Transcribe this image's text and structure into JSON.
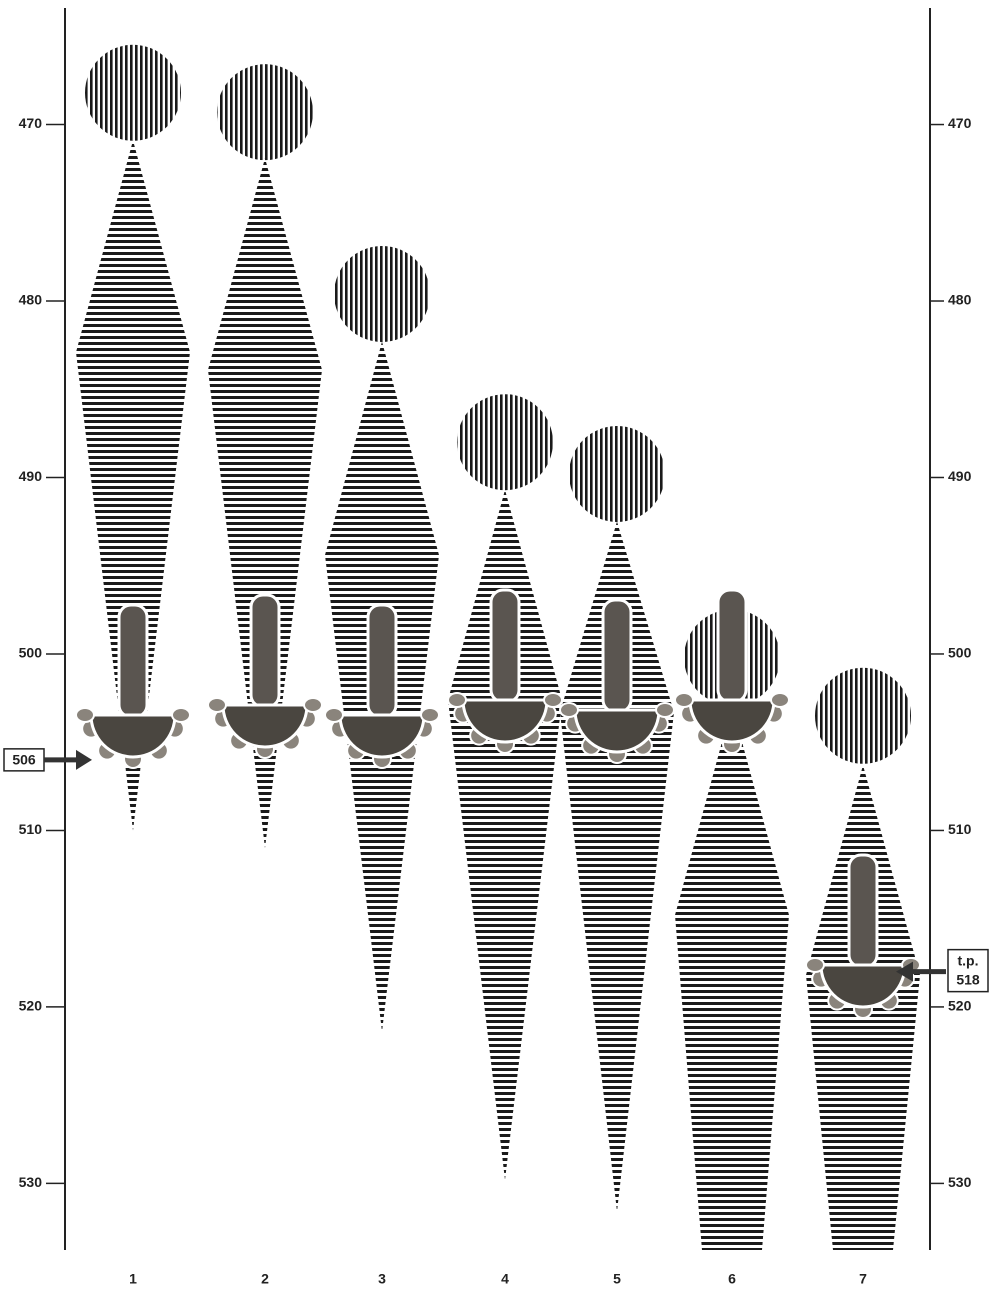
{
  "chart_data": {
    "type": "chronology",
    "categories": [
      "1",
      "2",
      "3",
      "4",
      "5",
      "6",
      "7"
    ],
    "circle": [
      468.2,
      469.3,
      479.6,
      488,
      489.8,
      500.2,
      503.5
    ],
    "start": [
      470.9,
      471.9,
      482.3,
      490.7,
      492.5,
      502.9,
      506.3
    ],
    "peak": [
      482.9,
      483.9,
      494.4,
      502.6,
      503.3,
      514.8,
      518.2
    ],
    "end": [
      510,
      511,
      521.4,
      529.8,
      531.6,
      null,
      null
    ],
    "ylim": [
      463,
      534
    ],
    "yticks": [
      470,
      480,
      490,
      500,
      510,
      520,
      530
    ],
    "annotations": [
      {
        "value": 506,
        "side": "left"
      },
      {
        "prefix": "t.p.",
        "value": 518,
        "side": "right"
      }
    ],
    "color": "#1a1a1a"
  }
}
